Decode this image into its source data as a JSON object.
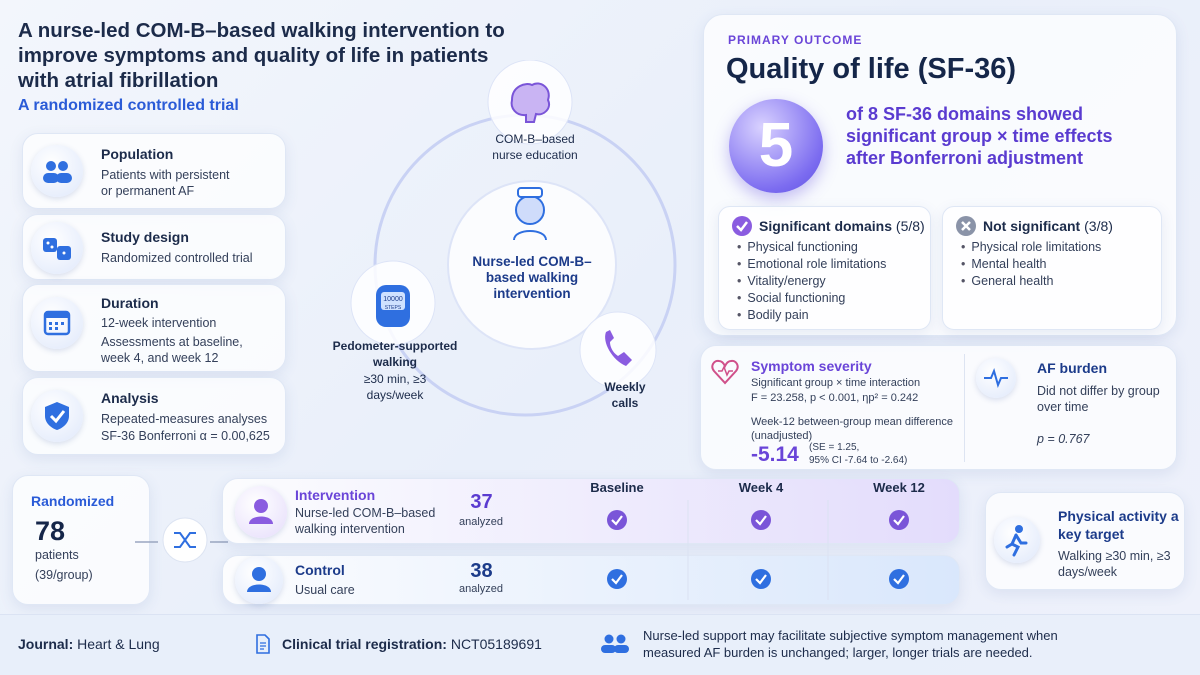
{
  "header": {
    "title": "A nurse-led COM-B–based walking intervention to improve symptoms and quality of life in patients with atrial fibrillation",
    "subtitle": "A randomized controlled trial"
  },
  "study": [
    {
      "label": "Population",
      "lines": [
        "Patients with persistent",
        "or permanent AF"
      ]
    },
    {
      "label": "Study design",
      "lines": [
        "Randomized controlled trial"
      ]
    },
    {
      "label": "Duration",
      "lines": [
        "12-week intervention",
        "Assessments at baseline,",
        "week 4, and week 12"
      ]
    },
    {
      "label": "Analysis",
      "lines": [
        "Repeated-measures analyses",
        "SF-36 Bonferroni α = 0.00,625"
      ]
    }
  ],
  "intervention": {
    "center": "Nurse-led COM-B–based walking intervention",
    "components": [
      {
        "label": "COM-B–based nurse education"
      },
      {
        "label": "Pedometer-supported walking",
        "detail": "≥30 min, ≥3 days/week",
        "device_value": "10000",
        "device_unit": "STEPS"
      },
      {
        "label": "Weekly calls"
      }
    ]
  },
  "primary": {
    "kicker": "PRIMARY OUTCOME",
    "title": "Quality of life (SF-36)",
    "number": 5,
    "statement": "of 8 SF-36 domains showed significant group × time effects after Bonferroni adjustment",
    "significant": {
      "heading": "Significant domains",
      "count": "(5/8)",
      "items": [
        "Physical functioning",
        "Emotional role limitations",
        "Vitality/energy",
        "Social functioning",
        "Bodily pain"
      ]
    },
    "not_significant": {
      "heading": "Not significant",
      "count": "(3/8)",
      "items": [
        "Physical role limitations",
        "Mental health",
        "General health"
      ]
    }
  },
  "symptom": {
    "title": "Symptom severity",
    "line1": "Significant group × time interaction",
    "stats": "F = 23.258, p < 0.001, ηp² = 0.242",
    "diff_label": "Week-12 between-group mean difference (unadjusted)",
    "diff": -5.14,
    "diff_se": "(SE = 1.25,",
    "diff_ci": "95% CI -7.64 to -2.64)"
  },
  "af_burden": {
    "title": "AF burden",
    "text": "Did not differ by group over time",
    "p": "p = 0.767"
  },
  "randomized": {
    "label": "Randomized",
    "n": 78,
    "unit": "patients",
    "detail": "(39/group)"
  },
  "arms": [
    {
      "name": "Intervention",
      "desc": "Nurse-led COM-B–based walking intervention",
      "n": 37,
      "n_label": "analyzed"
    },
    {
      "name": "Control",
      "desc": "Usual care",
      "n": 38,
      "n_label": "analyzed"
    }
  ],
  "timepoints": [
    "Baseline",
    "Week 4",
    "Week 12"
  ],
  "activity": {
    "title": "Physical activity a key target",
    "text": "Walking ≥30 min, ≥3 days/week"
  },
  "footer": {
    "journal_label": "Journal:",
    "journal": "Heart & Lung",
    "registration_label": "Clinical trial registration:",
    "registration": "NCT05189691",
    "note": "Nurse-led support may facilitate subjective symptom management when measured AF burden is unchanged; larger, longer trials are needed."
  }
}
